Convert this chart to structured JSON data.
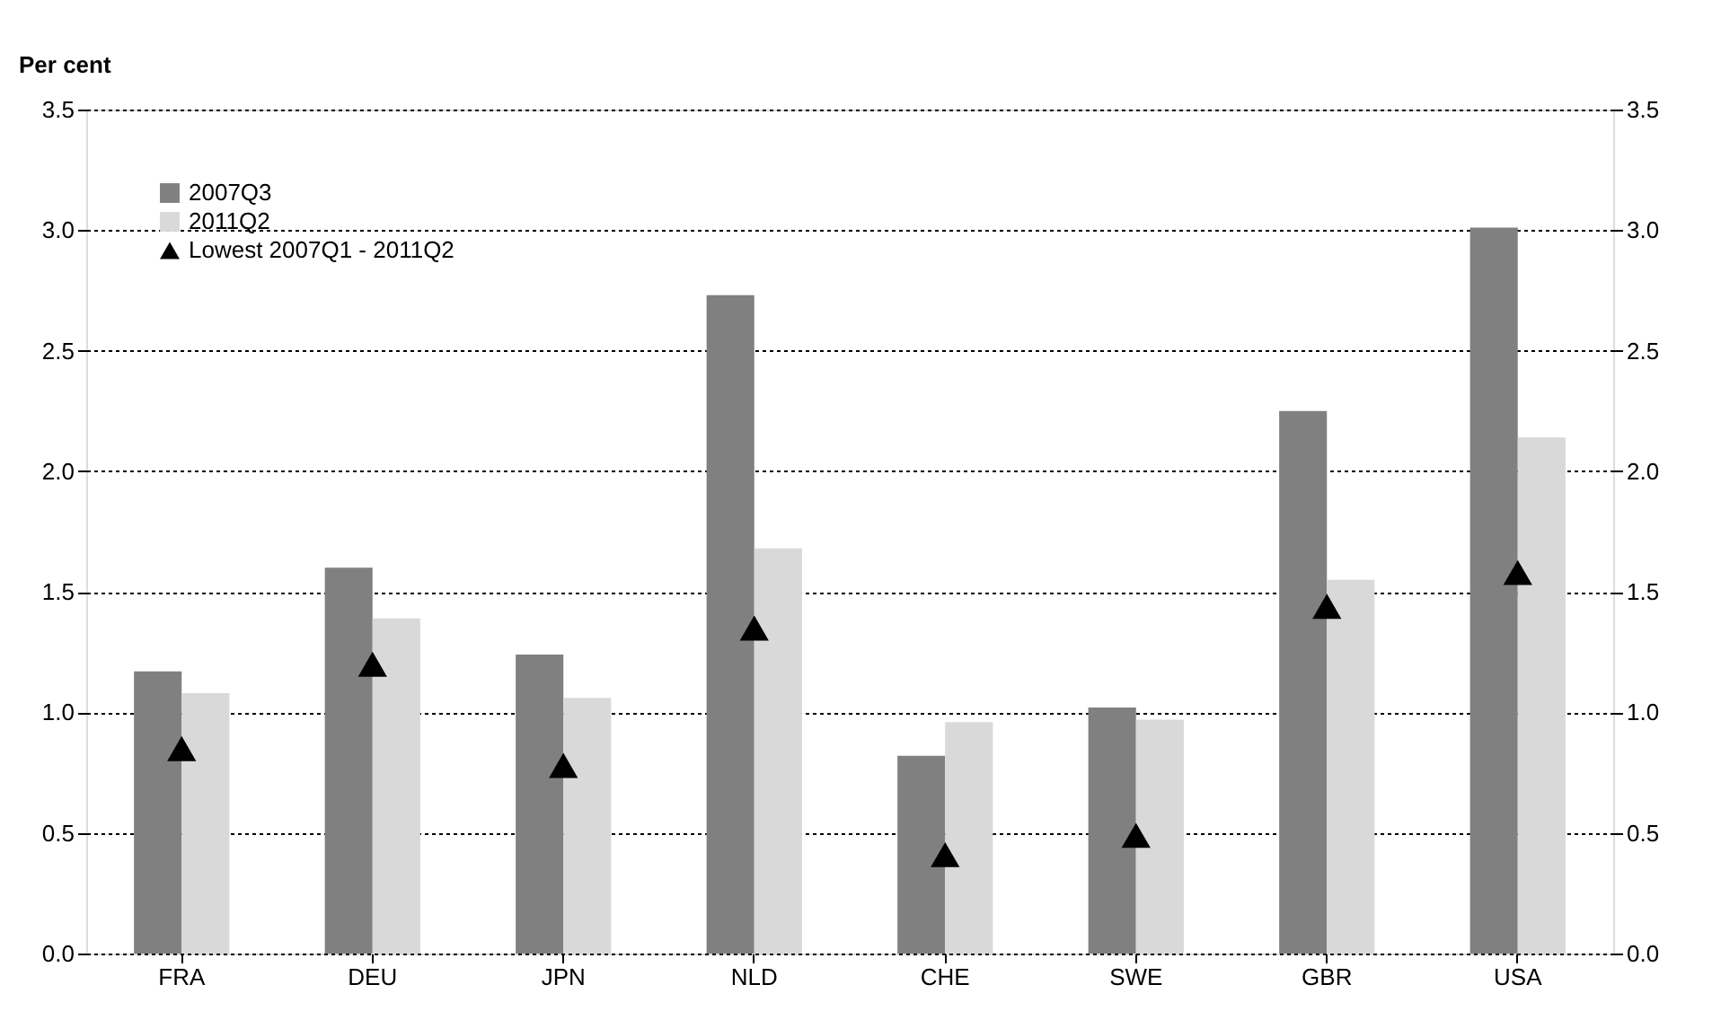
{
  "chart_data": {
    "type": "bar",
    "ylabel": "Per cent",
    "categories": [
      "FRA",
      "DEU",
      "JPN",
      "NLD",
      "CHE",
      "SWE",
      "GBR",
      "USA"
    ],
    "series": [
      {
        "name": "2007Q3",
        "color": "#808080",
        "values": [
          1.17,
          1.6,
          1.24,
          2.73,
          0.82,
          1.02,
          2.25,
          3.01
        ]
      },
      {
        "name": "2011Q2",
        "color": "#d9d9d9",
        "values": [
          1.08,
          1.39,
          1.06,
          1.68,
          0.96,
          0.97,
          1.55,
          2.14
        ]
      },
      {
        "name": "Lowest 2007Q1 - 2011Q2",
        "type": "scatter",
        "marker": "triangle",
        "color": "#000000",
        "values": [
          0.85,
          1.2,
          0.78,
          1.35,
          0.41,
          0.49,
          1.44,
          1.58
        ]
      }
    ],
    "ylim": [
      0,
      3.5
    ],
    "yticks": [
      {
        "value": 0,
        "label": "0.0"
      },
      {
        "value": 0.5,
        "label": "0.5"
      },
      {
        "value": 1,
        "label": "1.0"
      },
      {
        "value": 1.5,
        "label": "1.5"
      },
      {
        "value": 2,
        "label": "2.0"
      },
      {
        "value": 2.5,
        "label": "2.5"
      },
      {
        "value": 3,
        "label": "3.0"
      },
      {
        "value": 3.5,
        "label": "3.5"
      }
    ],
    "y2lim": [
      0,
      3.5
    ],
    "y2ticks": [
      {
        "value": 0,
        "label": "0.0"
      },
      {
        "value": 0.5,
        "label": "0.5"
      },
      {
        "value": 1,
        "label": "1.0"
      },
      {
        "value": 1.5,
        "label": "1.5"
      },
      {
        "value": 2,
        "label": "2.0"
      },
      {
        "value": 2.5,
        "label": "2.5"
      },
      {
        "value": 3,
        "label": "3.0"
      },
      {
        "value": 3.5,
        "label": "3.5"
      }
    ],
    "grid": "y",
    "legend": "top left"
  }
}
